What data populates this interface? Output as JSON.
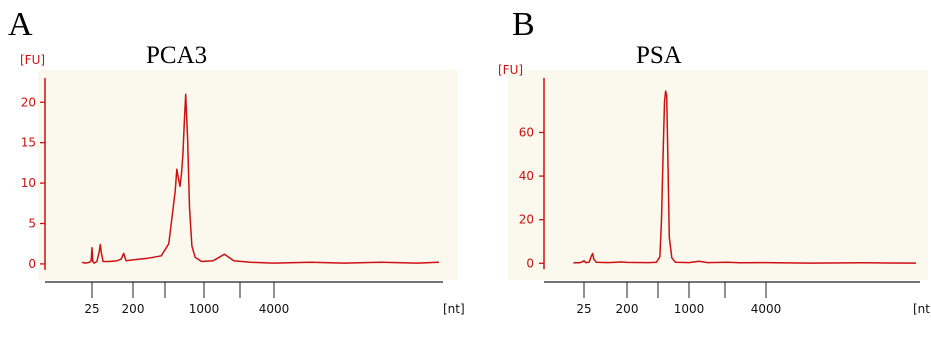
{
  "panels": [
    {
      "letter": "A",
      "title": "PCA3"
    },
    {
      "letter": "B",
      "title": "PSA"
    }
  ],
  "colors": {
    "trace": "#cc1111",
    "y_axis": "#cc1111",
    "frame": "#222222",
    "plot_background": "#fbf8ee"
  },
  "chart_data": [
    {
      "type": "line",
      "title": "PCA3",
      "ylabel": "[FU]",
      "xlabel": "[nt]",
      "y_ticks": [
        0,
        5,
        10,
        15,
        20
      ],
      "ylim": [
        -1,
        23
      ],
      "x_ticks": [
        "25",
        "200",
        "1000",
        "4000"
      ],
      "x_scale": "log (nucleotide size)",
      "series": [
        {
          "values": [
            [
              15,
              0.2
            ],
            [
              18,
              0.1
            ],
            [
              22,
              0.2
            ],
            [
              24,
              0.4
            ],
            [
              25,
              2.0
            ],
            [
              26,
              0.3
            ],
            [
              28,
              0.1
            ],
            [
              32,
              0.3
            ],
            [
              36,
              1.5
            ],
            [
              38,
              2.4
            ],
            [
              40,
              1.4
            ],
            [
              44,
              0.3
            ],
            [
              60,
              0.3
            ],
            [
              90,
              0.4
            ],
            [
              110,
              0.6
            ],
            [
              125,
              1.3
            ],
            [
              140,
              0.4
            ],
            [
              200,
              0.5
            ],
            [
              280,
              0.7
            ],
            [
              380,
              1.0
            ],
            [
              450,
              2.5
            ],
            [
              520,
              9.0
            ],
            [
              540,
              11.7
            ],
            [
              560,
              10.6
            ],
            [
              580,
              9.6
            ],
            [
              600,
              11.2
            ],
            [
              620,
              13.5
            ],
            [
              640,
              17.5
            ],
            [
              660,
              21.0
            ],
            [
              690,
              15.5
            ],
            [
              720,
              7.0
            ],
            [
              760,
              2.2
            ],
            [
              820,
              0.8
            ],
            [
              950,
              0.3
            ],
            [
              1200,
              0.4
            ],
            [
              1500,
              1.2
            ],
            [
              1800,
              0.4
            ],
            [
              2500,
              0.2
            ],
            [
              4000,
              0.1
            ],
            [
              8000,
              0.2
            ],
            [
              15000,
              0.1
            ],
            [
              30000,
              0.2
            ],
            [
              60000,
              0.1
            ],
            [
              90000,
              0.2
            ]
          ]
        }
      ]
    },
    {
      "type": "line",
      "title": "PSA",
      "ylabel": "[FU]",
      "xlabel": "[nt]",
      "y_ticks": [
        0,
        20,
        40,
        60
      ],
      "ylim": [
        -4,
        85
      ],
      "x_ticks": [
        "25",
        "200",
        "1000",
        "4000"
      ],
      "x_scale": "log (nucleotide size)",
      "series": [
        {
          "values": [
            [
              15,
              0.2
            ],
            [
              20,
              0.2
            ],
            [
              24,
              0.8
            ],
            [
              25,
              1.2
            ],
            [
              27,
              0.3
            ],
            [
              32,
              0.5
            ],
            [
              36,
              3.5
            ],
            [
              38,
              4.5
            ],
            [
              40,
              2.0
            ],
            [
              45,
              0.5
            ],
            [
              80,
              0.3
            ],
            [
              150,
              0.6
            ],
            [
              200,
              0.4
            ],
            [
              350,
              0.3
            ],
            [
              430,
              0.5
            ],
            [
              470,
              3.0
            ],
            [
              490,
              20.0
            ],
            [
              510,
              50.0
            ],
            [
              530,
              74.0
            ],
            [
              545,
              79.0
            ],
            [
              560,
              77.0
            ],
            [
              580,
              45.0
            ],
            [
              600,
              12.0
            ],
            [
              640,
              2.5
            ],
            [
              700,
              0.5
            ],
            [
              1000,
              0.3
            ],
            [
              1200,
              0.9
            ],
            [
              1400,
              0.3
            ],
            [
              2000,
              0.5
            ],
            [
              2500,
              0.2
            ],
            [
              4000,
              0.3
            ],
            [
              10000,
              0.1
            ],
            [
              30000,
              0.2
            ],
            [
              90000,
              0.1
            ]
          ]
        }
      ]
    }
  ]
}
